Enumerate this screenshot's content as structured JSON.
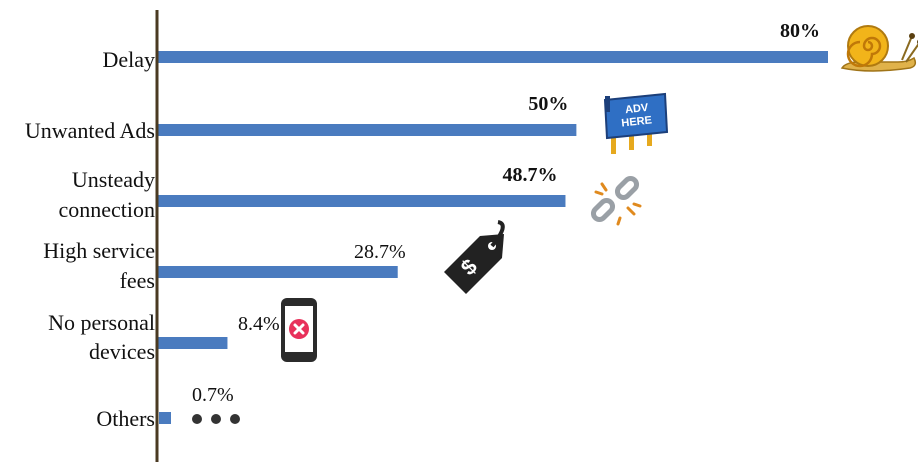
{
  "chart_data": {
    "type": "bar",
    "orientation": "horizontal",
    "categories": [
      [
        "Delay"
      ],
      [
        "Unwanted Ads"
      ],
      [
        "Unsteady",
        "connection"
      ],
      [
        "High service",
        "fees"
      ],
      [
        "No personal",
        "devices"
      ],
      [
        "Others"
      ]
    ],
    "values": [
      80,
      50,
      48.7,
      28.7,
      8.4,
      0.7
    ],
    "value_labels": [
      "80%",
      "50%",
      "48.7%",
      "28.7%",
      "8.4%",
      "0.7%"
    ],
    "bold_labels": [
      true,
      true,
      true,
      false,
      false,
      false
    ],
    "icons": [
      "snail-icon",
      "billboard-icon",
      "broken-link-icon",
      "price-tag-icon",
      "phone-x-icon",
      "ellipsis-icon"
    ],
    "billboard_text": [
      "ADV",
      "HERE"
    ],
    "bar_color": "#4a7bbf",
    "axis_color": "#4a3a22",
    "xlim": [
      0,
      80
    ],
    "grid": false,
    "title": "",
    "xlabel": "",
    "ylabel": ""
  }
}
